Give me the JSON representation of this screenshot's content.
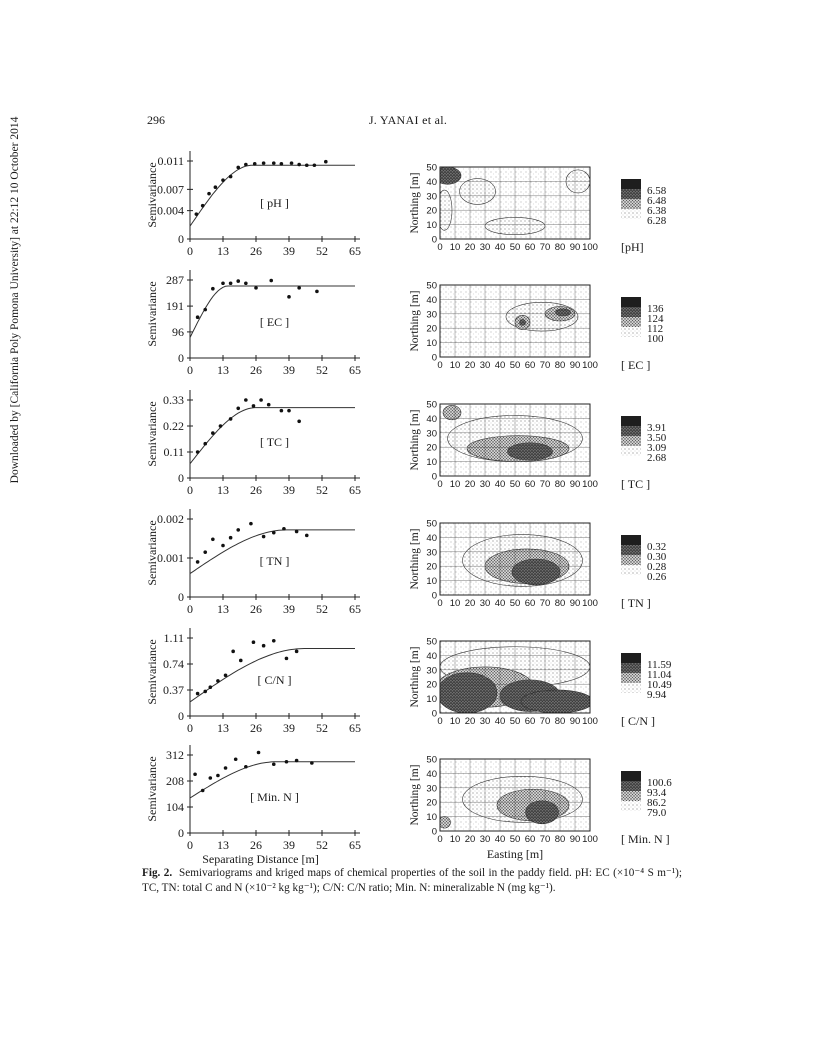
{
  "header": {
    "page_number": "296",
    "running_title": "J. YANAI et al."
  },
  "side_note": "Downloaded by [California Poly Pomona University] at 22:12 10 October 2014",
  "caption": {
    "label": "Fig. 2.",
    "text": "Semivariograms and kriged maps of chemical properties of the soil in the paddy field. pH: EC (×10⁻⁴ S m⁻¹); TC, TN: total C and N (×10⁻² kg kg⁻¹); C/N: C/N ratio; Min. N: mineralizable N (mg kg⁻¹)."
  },
  "chart_data": [
    {
      "type": "scatter",
      "panel": "semivariogram",
      "property": "pH",
      "label": "[ pH ]",
      "ylabel": "Semivariance",
      "xlabel": "",
      "xticks": [
        "0",
        "13",
        "26",
        "39",
        "52",
        "65"
      ],
      "xlim": [
        0,
        65
      ],
      "yticks": [
        {
          "v": 0,
          "t": "0"
        },
        {
          "v": 0.004,
          "t": "0.004"
        },
        {
          "v": 0.007,
          "t": "0.007"
        },
        {
          "v": 0.011,
          "t": "0.011"
        }
      ],
      "ylim": [
        0,
        0.011
      ],
      "points": [
        [
          2.5,
          0.0035
        ],
        [
          5,
          0.0047
        ],
        [
          7.5,
          0.0064
        ],
        [
          10,
          0.0073
        ],
        [
          13,
          0.0083
        ],
        [
          16,
          0.0088
        ],
        [
          19,
          0.0101
        ],
        [
          22,
          0.0105
        ],
        [
          25.5,
          0.0106
        ],
        [
          29,
          0.0107
        ],
        [
          33,
          0.0107
        ],
        [
          36,
          0.0106
        ],
        [
          40,
          0.0107
        ],
        [
          43,
          0.0105
        ],
        [
          46,
          0.0104
        ],
        [
          49,
          0.0104
        ],
        [
          53.5,
          0.0109
        ]
      ],
      "model": {
        "nugget": 0.0018,
        "sill": 0.0104,
        "range": 24.5
      }
    },
    {
      "type": "scatter",
      "panel": "semivariogram",
      "property": "EC",
      "label": "[ EC ]",
      "ylabel": "Semivariance",
      "xlabel": "",
      "xticks": [
        "0",
        "13",
        "26",
        "39",
        "52",
        "65"
      ],
      "xlim": [
        0,
        65
      ],
      "yticks": [
        {
          "v": 0,
          "t": "0"
        },
        {
          "v": 96,
          "t": "96"
        },
        {
          "v": 191,
          "t": "191"
        },
        {
          "v": 287,
          "t": "287"
        }
      ],
      "ylim": [
        0,
        287
      ],
      "points": [
        [
          3,
          150
        ],
        [
          6,
          178
        ],
        [
          9,
          255
        ],
        [
          13,
          275
        ],
        [
          16,
          275
        ],
        [
          19,
          283
        ],
        [
          22,
          275
        ],
        [
          26,
          258
        ],
        [
          32,
          285
        ],
        [
          39,
          225
        ],
        [
          43,
          258
        ],
        [
          50,
          245
        ]
      ],
      "model": {
        "nugget": 75,
        "sill": 265,
        "range": 15
      }
    },
    {
      "type": "scatter",
      "panel": "semivariogram",
      "property": "TC",
      "label": "[ TC ]",
      "ylabel": "Semivariance",
      "xlabel": "",
      "xticks": [
        "0",
        "13",
        "26",
        "39",
        "52",
        "65"
      ],
      "xlim": [
        0,
        65
      ],
      "yticks": [
        {
          "v": 0,
          "t": "0"
        },
        {
          "v": 0.11,
          "t": "0.11"
        },
        {
          "v": 0.22,
          "t": "0.22"
        },
        {
          "v": 0.33,
          "t": "0.33"
        }
      ],
      "ylim": [
        0,
        0.33
      ],
      "points": [
        [
          3,
          0.11
        ],
        [
          6,
          0.145
        ],
        [
          9,
          0.19
        ],
        [
          12,
          0.22
        ],
        [
          16,
          0.25
        ],
        [
          19,
          0.295
        ],
        [
          22,
          0.33
        ],
        [
          25,
          0.305
        ],
        [
          28,
          0.33
        ],
        [
          31,
          0.31
        ],
        [
          36,
          0.285
        ],
        [
          39,
          0.285
        ],
        [
          43,
          0.24
        ]
      ],
      "model": {
        "nugget": 0.06,
        "sill": 0.298,
        "range": 26
      }
    },
    {
      "type": "scatter",
      "panel": "semivariogram",
      "property": "TN",
      "label": "[ TN ]",
      "ylabel": "Semivariance",
      "xlabel": "",
      "xticks": [
        "0",
        "13",
        "26",
        "39",
        "52",
        "65"
      ],
      "xlim": [
        0,
        65
      ],
      "yticks": [
        {
          "v": 0,
          "t": "0"
        },
        {
          "v": 0.001,
          "t": "0.001"
        },
        {
          "v": 0.002,
          "t": "0.002"
        }
      ],
      "ylim": [
        0,
        0.002
      ],
      "points": [
        [
          3,
          0.0009
        ],
        [
          6,
          0.00115
        ],
        [
          9,
          0.00148
        ],
        [
          13,
          0.00132
        ],
        [
          16,
          0.00152
        ],
        [
          19,
          0.00172
        ],
        [
          24,
          0.00188
        ],
        [
          29,
          0.00155
        ],
        [
          33,
          0.00165
        ],
        [
          37,
          0.00175
        ],
        [
          42,
          0.00168
        ],
        [
          46,
          0.00158
        ]
      ],
      "model": {
        "nugget": 0.0006,
        "sill": 0.00172,
        "range": 38
      }
    },
    {
      "type": "scatter",
      "panel": "semivariogram",
      "property": "C/N",
      "label": "[ C/N ]",
      "ylabel": "Semivariance",
      "xlabel": "",
      "xticks": [
        "0",
        "13",
        "26",
        "39",
        "52",
        "65"
      ],
      "xlim": [
        0,
        65
      ],
      "yticks": [
        {
          "v": 0,
          "t": "0"
        },
        {
          "v": 0.37,
          "t": "0.37"
        },
        {
          "v": 0.74,
          "t": "0.74"
        },
        {
          "v": 1.11,
          "t": "1.11"
        }
      ],
      "ylim": [
        0,
        1.11
      ],
      "points": [
        [
          3,
          0.32
        ],
        [
          6,
          0.35
        ],
        [
          8,
          0.41
        ],
        [
          11,
          0.5
        ],
        [
          14,
          0.58
        ],
        [
          17,
          0.92
        ],
        [
          20,
          0.79
        ],
        [
          25,
          1.05
        ],
        [
          29,
          1.0
        ],
        [
          33,
          1.07
        ],
        [
          38,
          0.82
        ],
        [
          42,
          0.92
        ]
      ],
      "model": {
        "nugget": 0.2,
        "sill": 0.96,
        "range": 45
      }
    },
    {
      "type": "scatter",
      "panel": "semivariogram",
      "property": "Min. N",
      "label": "[ Min. N ]",
      "ylabel": "Semivariance",
      "xlabel": "Separating Distance  [m]",
      "xticks": [
        "0",
        "13",
        "26",
        "39",
        "52",
        "65"
      ],
      "xlim": [
        0,
        65
      ],
      "yticks": [
        {
          "v": 0,
          "t": "0"
        },
        {
          "v": 104,
          "t": "104"
        },
        {
          "v": 208,
          "t": "208"
        },
        {
          "v": 312,
          "t": "312"
        }
      ],
      "ylim": [
        0,
        312
      ],
      "points": [
        [
          2,
          235
        ],
        [
          5,
          170
        ],
        [
          8,
          220
        ],
        [
          11,
          230
        ],
        [
          14,
          260
        ],
        [
          18,
          295
        ],
        [
          22,
          265
        ],
        [
          27,
          322
        ],
        [
          33,
          275
        ],
        [
          38,
          285
        ],
        [
          42,
          290
        ],
        [
          48,
          280
        ]
      ],
      "model": {
        "nugget": 140,
        "sill": 285,
        "range": 34
      }
    }
  ],
  "maps": {
    "ylabel": "Northing [m]",
    "xlabel": "Easting [m]",
    "xticks": [
      "0",
      "10",
      "20",
      "30",
      "40",
      "50",
      "60",
      "70",
      "80",
      "90",
      "100"
    ],
    "yticks": [
      "0",
      "10",
      "20",
      "30",
      "40",
      "50"
    ],
    "items": [
      {
        "label": "[pH]",
        "legend": [
          "6.58",
          "6.48",
          "6.38",
          "6.28"
        ],
        "blobs": [
          {
            "cx": 5,
            "cy": 44,
            "rx": 9,
            "ry": 6,
            "level": 3
          },
          {
            "cx": 3,
            "cy": 20,
            "rx": 5,
            "ry": 14,
            "level": 1
          },
          {
            "cx": 50,
            "cy": 9,
            "rx": 20,
            "ry": 6,
            "level": 1
          },
          {
            "cx": 92,
            "cy": 40,
            "rx": 8,
            "ry": 8,
            "level": 1
          },
          {
            "cx": 25,
            "cy": 33,
            "rx": 12,
            "ry": 9,
            "level": 1
          }
        ]
      },
      {
        "label": "[ EC ]",
        "legend": [
          "136",
          "124",
          "112",
          "100"
        ],
        "blobs": [
          {
            "cx": 68,
            "cy": 28,
            "rx": 24,
            "ry": 10,
            "level": 1
          },
          {
            "cx": 80,
            "cy": 30,
            "rx": 10,
            "ry": 5,
            "level": 2
          },
          {
            "cx": 82,
            "cy": 31,
            "rx": 5,
            "ry": 2.5,
            "level": 3
          },
          {
            "cx": 55,
            "cy": 24,
            "rx": 5,
            "ry": 5,
            "level": 2
          },
          {
            "cx": 55,
            "cy": 24,
            "rx": 2,
            "ry": 2,
            "level": 3
          }
        ]
      },
      {
        "label": "[ TC ]",
        "legend": [
          "3.91",
          "3.50",
          "3.09",
          "2.68"
        ],
        "blobs": [
          {
            "cx": 50,
            "cy": 26,
            "rx": 45,
            "ry": 16,
            "level": 1
          },
          {
            "cx": 52,
            "cy": 19,
            "rx": 34,
            "ry": 9,
            "level": 2
          },
          {
            "cx": 60,
            "cy": 17,
            "rx": 15,
            "ry": 6,
            "level": 3
          },
          {
            "cx": 8,
            "cy": 44,
            "rx": 6,
            "ry": 5,
            "level": 2
          }
        ]
      },
      {
        "label": "[ TN ]",
        "legend": [
          "0.32",
          "0.30",
          "0.28",
          "0.26"
        ],
        "blobs": [
          {
            "cx": 55,
            "cy": 24,
            "rx": 40,
            "ry": 18,
            "level": 1
          },
          {
            "cx": 58,
            "cy": 20,
            "rx": 28,
            "ry": 12,
            "level": 2
          },
          {
            "cx": 64,
            "cy": 16,
            "rx": 16,
            "ry": 9,
            "level": 3
          }
        ]
      },
      {
        "label": "[ C/N ]",
        "legend": [
          "11.59",
          "11.04",
          "10.49",
          "9.94"
        ],
        "blobs": [
          {
            "cx": 50,
            "cy": 32,
            "rx": 50,
            "ry": 14,
            "level": 1
          },
          {
            "cx": 30,
            "cy": 18,
            "rx": 32,
            "ry": 14,
            "level": 2
          },
          {
            "cx": 18,
            "cy": 14,
            "rx": 20,
            "ry": 14,
            "level": 3
          },
          {
            "cx": 60,
            "cy": 12,
            "rx": 20,
            "ry": 11,
            "level": 3
          },
          {
            "cx": 78,
            "cy": 8,
            "rx": 24,
            "ry": 8,
            "level": 3
          }
        ]
      },
      {
        "label": "[ Min. N ]",
        "legend": [
          "100.6",
          "93.4",
          "86.2",
          "79.0"
        ],
        "blobs": [
          {
            "cx": 55,
            "cy": 22,
            "rx": 40,
            "ry": 16,
            "level": 1
          },
          {
            "cx": 62,
            "cy": 18,
            "rx": 24,
            "ry": 11,
            "level": 2
          },
          {
            "cx": 68,
            "cy": 13,
            "rx": 11,
            "ry": 8,
            "level": 3
          },
          {
            "cx": 3,
            "cy": 6,
            "rx": 4,
            "ry": 4,
            "level": 2
          }
        ]
      }
    ]
  }
}
